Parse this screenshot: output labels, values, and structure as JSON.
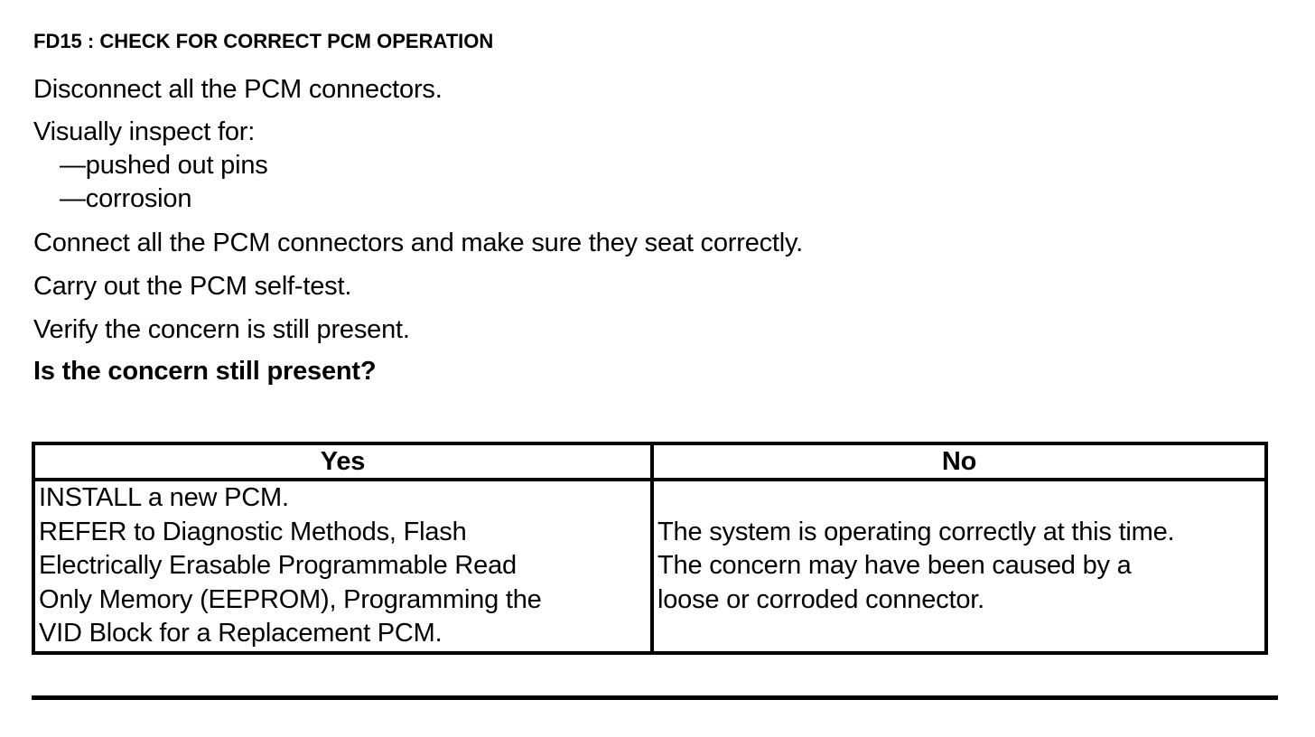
{
  "title": "FD15 : CHECK FOR CORRECT PCM OPERATION",
  "steps": [
    "Disconnect all the PCM connectors.",
    "Visually inspect for:",
    "—pushed out pins",
    "—corrosion",
    "Connect all the PCM connectors and make sure they seat correctly.",
    "Carry out the PCM self-test.",
    "Verify the concern is still present."
  ],
  "question": "Is the concern still present?",
  "table": {
    "headers": [
      "Yes",
      "No"
    ],
    "yes_lines": [
      "INSTALL a new PCM.",
      "REFER to Diagnostic Methods, Flash",
      "Electrically Erasable Programmable Read",
      "Only Memory (EEPROM), Programming the",
      "VID Block for a Replacement PCM."
    ],
    "no_lines": [
      "The system is operating correctly at this time.",
      "The concern may have been caused by a",
      "loose or corroded connector."
    ]
  }
}
